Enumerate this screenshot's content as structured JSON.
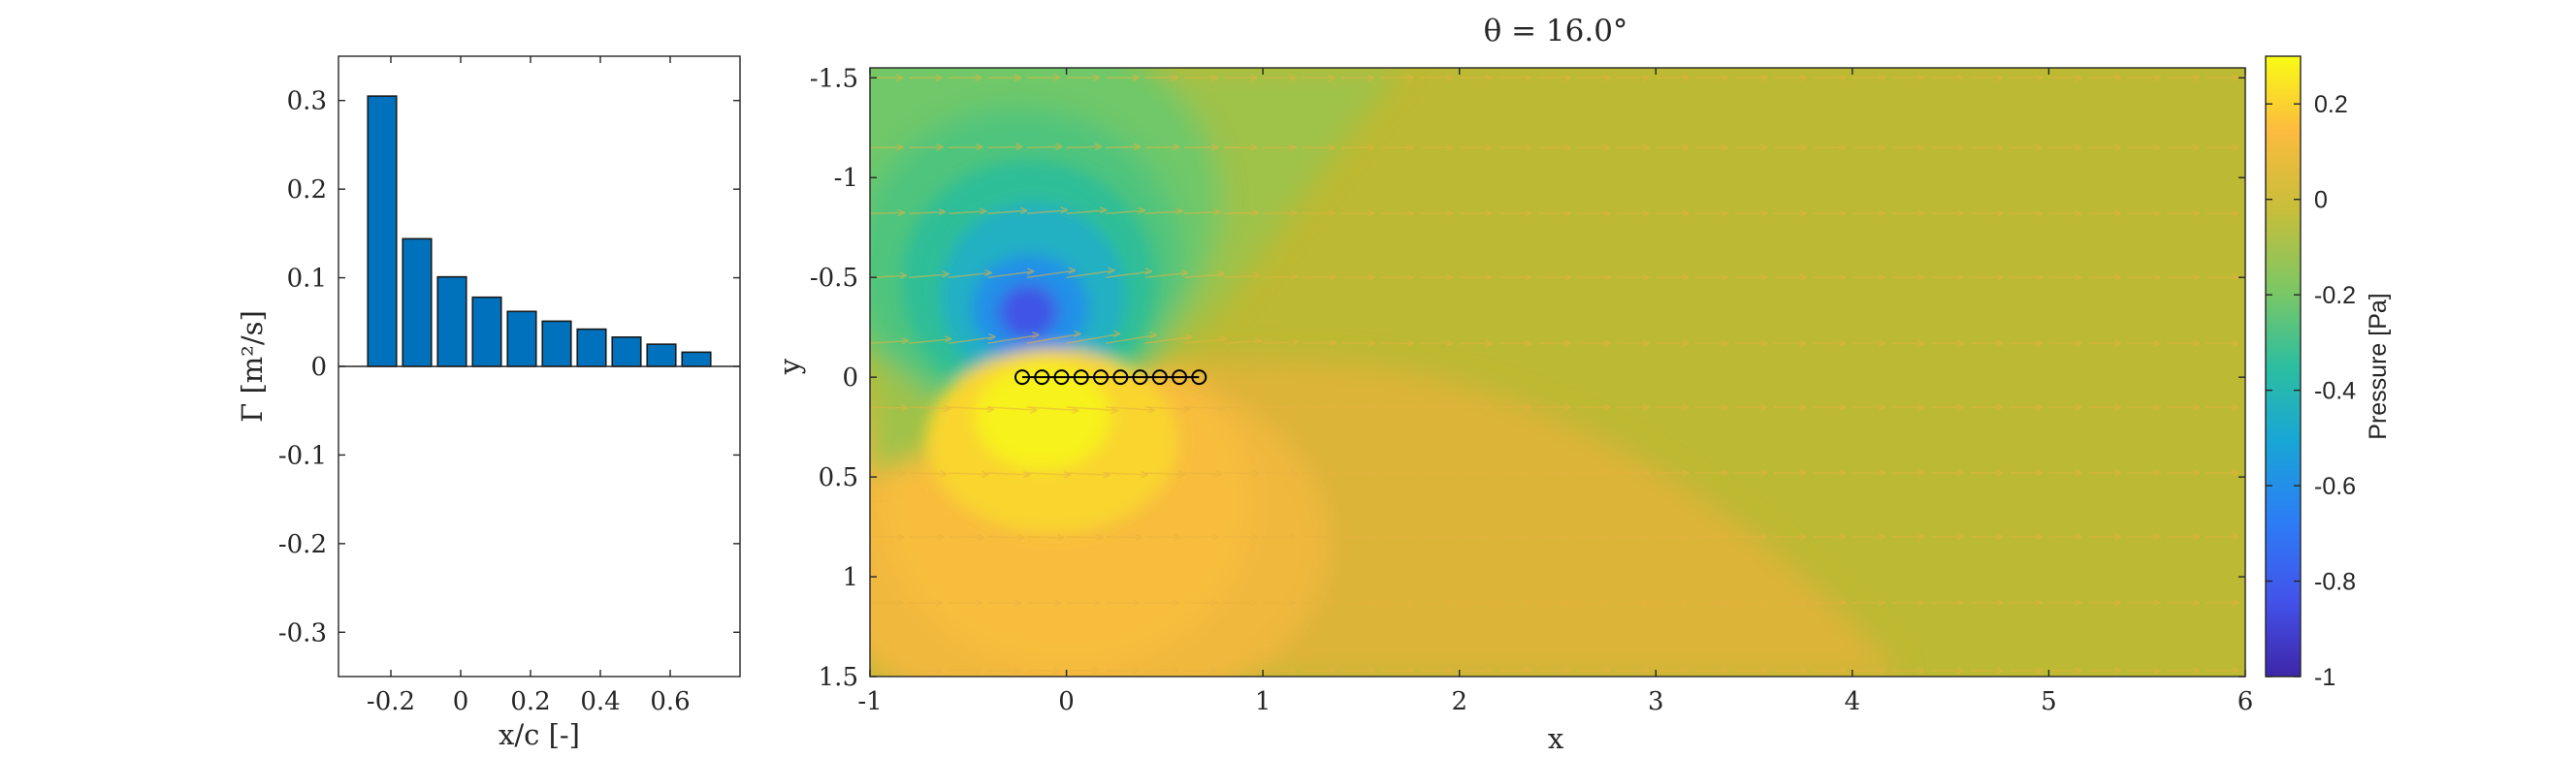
{
  "chart_data": [
    {
      "type": "bar",
      "xlabel": "x/c [-]",
      "ylabel": "Γ [m²/s]",
      "x": [
        -0.225,
        -0.125,
        -0.025,
        0.075,
        0.175,
        0.275,
        0.375,
        0.475,
        0.575,
        0.675
      ],
      "values": [
        0.305,
        0.144,
        0.101,
        0.078,
        0.062,
        0.051,
        0.042,
        0.033,
        0.025,
        0.016
      ],
      "xlim": [
        -0.35,
        0.8
      ],
      "ylim": [
        -0.35,
        0.35
      ],
      "xticks": [
        "-0.2",
        "0",
        "0.2",
        "0.4",
        "0.6"
      ],
      "yticks": [
        "0.3",
        "0.2",
        "0.1",
        "0",
        "-0.1",
        "-0.2",
        "-0.3"
      ],
      "grid": false
    },
    {
      "type": "heatmap",
      "title": "θ = 16.0°",
      "xlabel": "x",
      "ylabel": "y",
      "xlim": [
        -1,
        6
      ],
      "ylim": [
        -1.55,
        1.5
      ],
      "y_reversed": true,
      "xticks": [
        "-1",
        "0",
        "1",
        "2",
        "3",
        "4",
        "5",
        "6"
      ],
      "yticks": [
        "-1.5",
        "-1",
        "-0.5",
        "0",
        "0.5",
        "1",
        "1.5"
      ],
      "colorbar": {
        "label": "Pressure [Pa]",
        "range": [
          -1,
          0.3
        ],
        "ticks": [
          "0.2",
          "0",
          "-0.2",
          "-0.4",
          "-0.6",
          "-0.8",
          "-1"
        ],
        "colormap": "parula"
      },
      "panel_points_x": [
        -0.225,
        -0.125,
        -0.025,
        0.075,
        0.175,
        0.275,
        0.375,
        0.475,
        0.575,
        0.675
      ],
      "panel_points_y": 0,
      "features": {
        "suction_peak": {
          "x": -0.12,
          "y": -0.28,
          "value": -0.9
        },
        "pressure_peak": {
          "x": -0.02,
          "y": 0.22,
          "value": 0.28
        }
      },
      "grid": false
    }
  ]
}
